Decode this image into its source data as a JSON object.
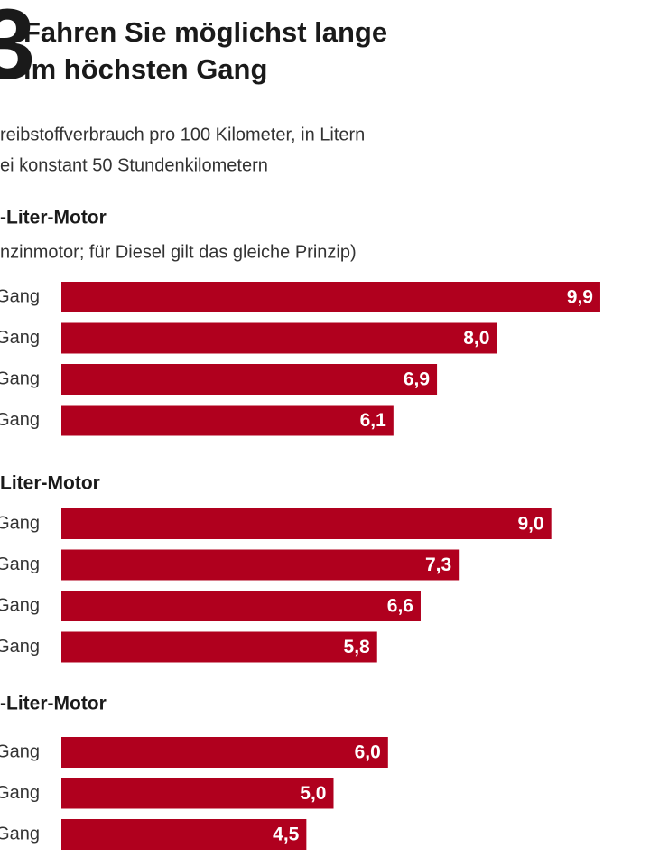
{
  "chart_data": {
    "type": "bar",
    "number": "3",
    "title": [
      "Fahren Sie möglichst lange",
      "im höchsten Gang"
    ],
    "subtitle": [
      "reibstoffverbrauch pro 100 Kilometer, in Litern",
      "ei konstant 50 Stundenkilometern"
    ],
    "color": "#b0001e",
    "groups": [
      {
        "name": "-Liter-Motor",
        "note": "nzinmotor; für Diesel gilt das gleiche Prinzip)",
        "categories": [
          "Gang",
          "Gang",
          "Gang",
          "Gang"
        ],
        "values": [
          9.9,
          8.0,
          6.9,
          6.1
        ],
        "value_labels": [
          "9,9",
          "8,0",
          "6,9",
          "6,1"
        ]
      },
      {
        "name": "Liter-Motor",
        "categories": [
          "Gang",
          "Gang",
          "Gang",
          "Gang"
        ],
        "values": [
          9.0,
          7.3,
          6.6,
          5.8
        ],
        "value_labels": [
          "9,0",
          "7,3",
          "6,6",
          "5,8"
        ]
      },
      {
        "name": "-Liter-Motor",
        "categories": [
          "Gang",
          "Gang",
          "Gang"
        ],
        "values": [
          6.0,
          5.0,
          4.5
        ],
        "value_labels": [
          "6,0",
          "5,0",
          "4,5"
        ]
      }
    ]
  }
}
